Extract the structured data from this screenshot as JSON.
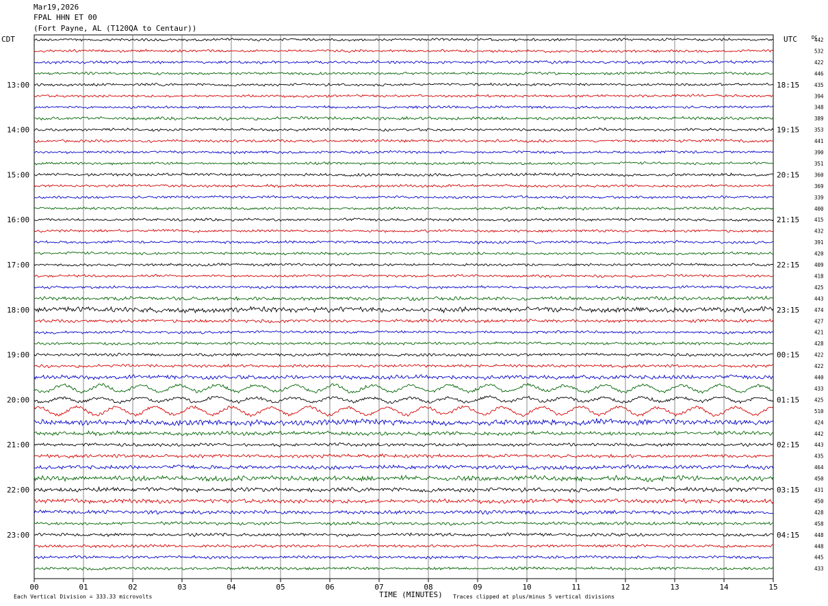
{
  "header": {
    "date": "Mar19,2026",
    "channel": "FPAL HHN ET 00",
    "location": "(Fort Payne, AL (T120QA to Centaur))"
  },
  "labels": {
    "left_axis": "CDT",
    "right_axis": "UTC",
    "dc_header": "DC",
    "xlabel": "TIME (MINUTES)",
    "scale_note": "Each Vertical Division =  333.33 microvolts",
    "clip_note": "Traces clipped at plus/minus 5 vertical divisions"
  },
  "chart_data": {
    "type": "line",
    "title": "",
    "xlabel": "TIME (MINUTES)",
    "xlim": [
      0,
      15
    ],
    "x_ticks": [
      "00",
      "01",
      "02",
      "03",
      "04",
      "05",
      "06",
      "07",
      "08",
      "09",
      "10",
      "11",
      "12",
      "13",
      "14",
      "15"
    ],
    "left_hour_labels": [
      "13:00",
      "14:00",
      "15:00",
      "16:00",
      "17:00",
      "18:00",
      "19:00",
      "20:00",
      "21:00",
      "22:00",
      "23:00"
    ],
    "right_hour_labels": [
      "18:15",
      "19:15",
      "20:15",
      "21:15",
      "22:15",
      "23:15",
      "00:15",
      "01:15",
      "02:15",
      "03:15",
      "04:15"
    ],
    "trace_count": 48,
    "traces_per_hour": 4,
    "hour_label_first_trace": 4,
    "trace_colors": [
      "#000000",
      "#d40000",
      "#0000c8",
      "#006400"
    ],
    "dc_values": [
      "442",
      "532",
      "422",
      "446",
      "435",
      "394",
      "348",
      "389",
      "353",
      "441",
      "390",
      "351",
      "360",
      "369",
      "339",
      "400",
      "415",
      "432",
      "391",
      "420",
      "409",
      "418",
      "425",
      "443",
      "474",
      "427",
      "421",
      "428",
      "422",
      "422",
      "440",
      "433",
      "425",
      "510",
      "424",
      "442",
      "443",
      "435",
      "464",
      "450",
      "431",
      "450",
      "428",
      "458",
      "448",
      "448",
      "445",
      "433"
    ],
    "amplitude": [
      1.0,
      1.0,
      1.1,
      1.0,
      1.0,
      1.0,
      1.0,
      1.2,
      1.0,
      1.0,
      1.0,
      1.0,
      1.1,
      1.0,
      1.0,
      1.0,
      1.0,
      1.0,
      1.0,
      1.0,
      1.0,
      1.0,
      1.0,
      1.4,
      2.0,
      1.2,
      1.0,
      1.0,
      1.1,
      1.1,
      1.5,
      4.5,
      3.5,
      5.0,
      2.2,
      1.5,
      1.2,
      1.3,
      1.5,
      2.0,
      1.6,
      1.6,
      1.4,
      1.2,
      1.2,
      1.1,
      1.1,
      1.1
    ],
    "units_per_division": "333.33 microvolts"
  }
}
